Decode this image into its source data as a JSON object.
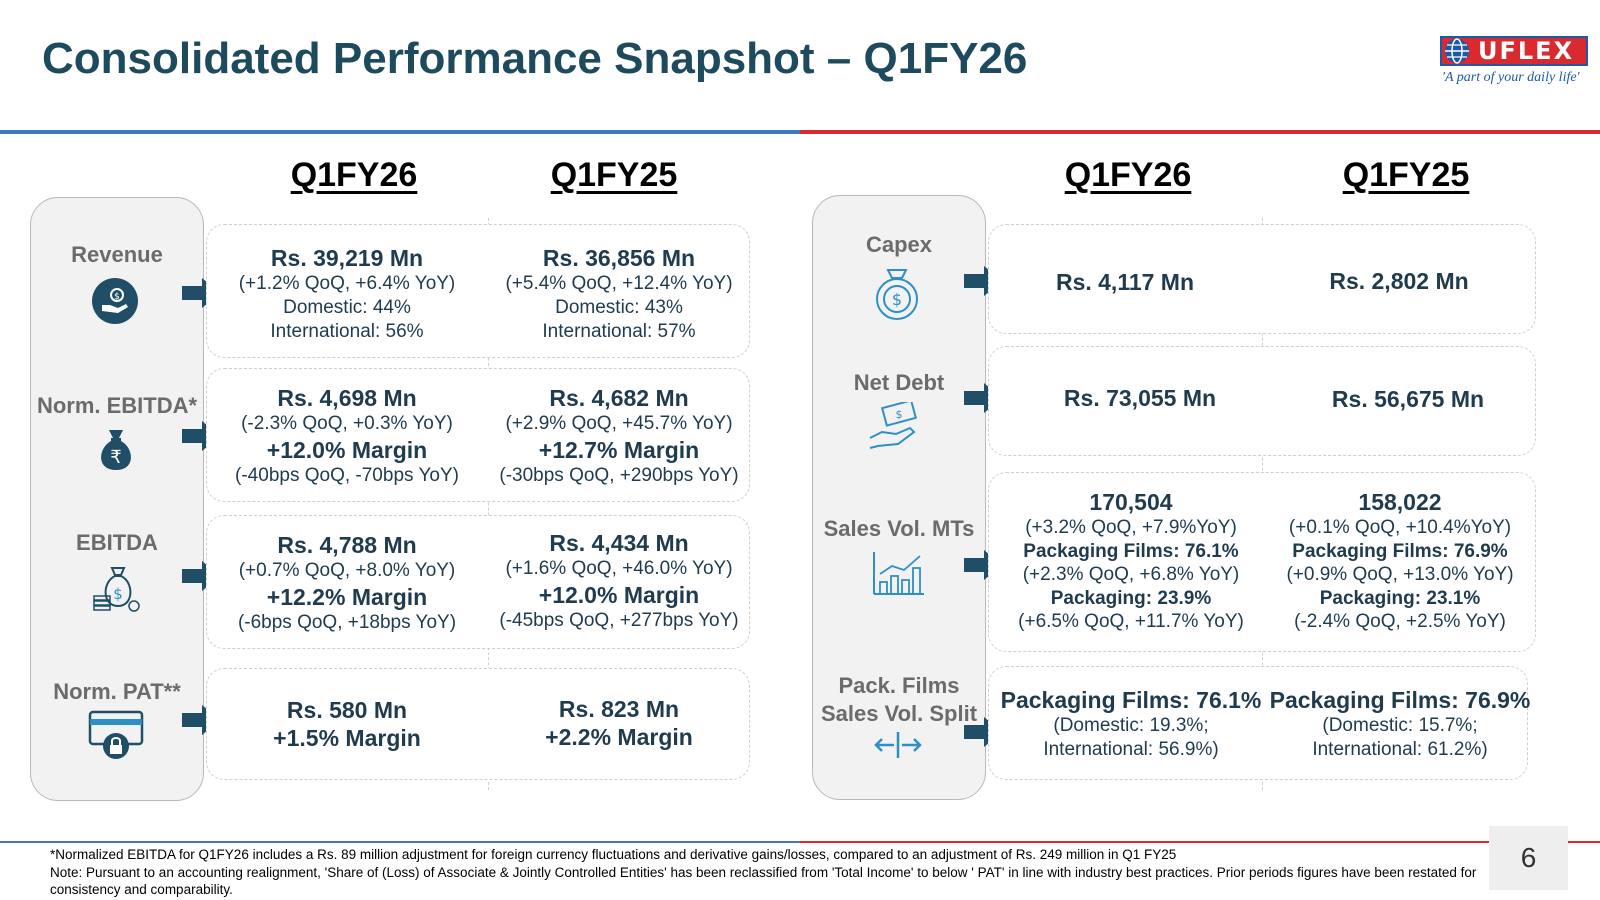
{
  "title": "Consolidated Performance Snapshot – Q1FY26",
  "logo": {
    "brand": "UFLEX",
    "tagline": "'A part of your daily life'"
  },
  "left": {
    "headers": [
      "Q1FY26",
      "Q1FY25"
    ],
    "rows": [
      {
        "label": "Revenue",
        "icon": "hand-coin-icon",
        "q1fy26": [
          "Rs. 39,219 Mn",
          "(+1.2% QoQ, +6.4% YoY)",
          "Domestic: 44%",
          "International: 56%"
        ],
        "q1fy25": [
          "Rs. 36,856 Mn",
          "(+5.4% QoQ, +12.4% YoY)",
          "Domestic: 43%",
          "International: 57%"
        ]
      },
      {
        "label": "Norm. EBITDA*",
        "icon": "rupee-bag-icon",
        "q1fy26": [
          "Rs. 4,698 Mn",
          "(-2.3% QoQ, +0.3% YoY)",
          "+12.0% Margin",
          "(-40bps QoQ, -70bps YoY)"
        ],
        "q1fy25": [
          "Rs. 4,682 Mn",
          "(+2.9% QoQ, +45.7% YoY)",
          "+12.7% Margin",
          "(-30bps QoQ, +290bps YoY)"
        ]
      },
      {
        "label": "EBITDA",
        "icon": "money-bag-icon",
        "q1fy26": [
          "Rs. 4,788 Mn",
          "(+0.7% QoQ, +8.0% YoY)",
          "+12.2% Margin",
          "(-6bps QoQ, +18bps YoY)"
        ],
        "q1fy25": [
          "Rs. 4,434 Mn",
          "(+1.6% QoQ, +46.0% YoY)",
          "+12.0% Margin",
          "(-45bps QoQ, +277bps YoY)"
        ]
      },
      {
        "label": "Norm. PAT**",
        "icon": "card-lock-icon",
        "q1fy26": [
          "Rs. 580 Mn",
          "+1.5% Margin"
        ],
        "q1fy25": [
          "Rs. 823 Mn",
          "+2.2% Margin"
        ]
      }
    ]
  },
  "right": {
    "headers": [
      "Q1FY26",
      "Q1FY25"
    ],
    "rows": [
      {
        "label": "Capex",
        "icon": "dollar-target-icon",
        "q1fy26": [
          "Rs. 4,117 Mn"
        ],
        "q1fy25": [
          "Rs. 2,802 Mn"
        ]
      },
      {
        "label": "Net Debt",
        "icon": "cash-hand-icon",
        "q1fy26": [
          "Rs. 73,055 Mn"
        ],
        "q1fy25": [
          "Rs. 56,675 Mn"
        ]
      },
      {
        "label": "Sales Vol. MTs",
        "icon": "bar-chart-icon",
        "q1fy26": [
          "170,504",
          "(+3.2% QoQ, +7.9%YoY)",
          "Packaging Films: 76.1%",
          "(+2.3% QoQ, +6.8% YoY)",
          "Packaging: 23.9%",
          "(+6.5% QoQ, +11.7% YoY)"
        ],
        "q1fy25": [
          "158,022",
          "(+0.1% QoQ, +10.4%YoY)",
          "Packaging Films: 76.9%",
          "(+0.9% QoQ, +13.0% YoY)",
          "Packaging: 23.1%",
          "(-2.4% QoQ, +2.5% YoY)"
        ]
      },
      {
        "label_lines": [
          "Pack. Films",
          "Sales Vol. Split"
        ],
        "icon": "split-arrows-icon",
        "q1fy26": [
          "Packaging Films: 76.1%",
          "(Domestic: 19.3%;",
          "International: 56.9%)"
        ],
        "q1fy25": [
          "Packaging Films: 76.9%",
          "(Domestic: 15.7%;",
          "International: 61.2%)"
        ]
      }
    ]
  },
  "footnotes": [
    "*Normalized EBITDA for Q1FY26 includes a Rs. 89 million adjustment for foreign currency fluctuations and derivative gains/losses, compared to an adjustment of Rs. 249 million in Q1 FY25",
    "Note: Pursuant to an accounting realignment, 'Share of (Loss) of Associate & Jointly Controlled Entities' has been reclassified from 'Total Income' to below ' PAT' in line with industry best practices. Prior periods figures have been restated for consistency and comparability."
  ],
  "page_number": "6",
  "colors": {
    "title": "#1d4a5c",
    "accent_blue": "#3d78c1",
    "accent_red": "#d92a2f",
    "icon_dark": "#1f4e66",
    "icon_light": "#2e8fc4"
  }
}
